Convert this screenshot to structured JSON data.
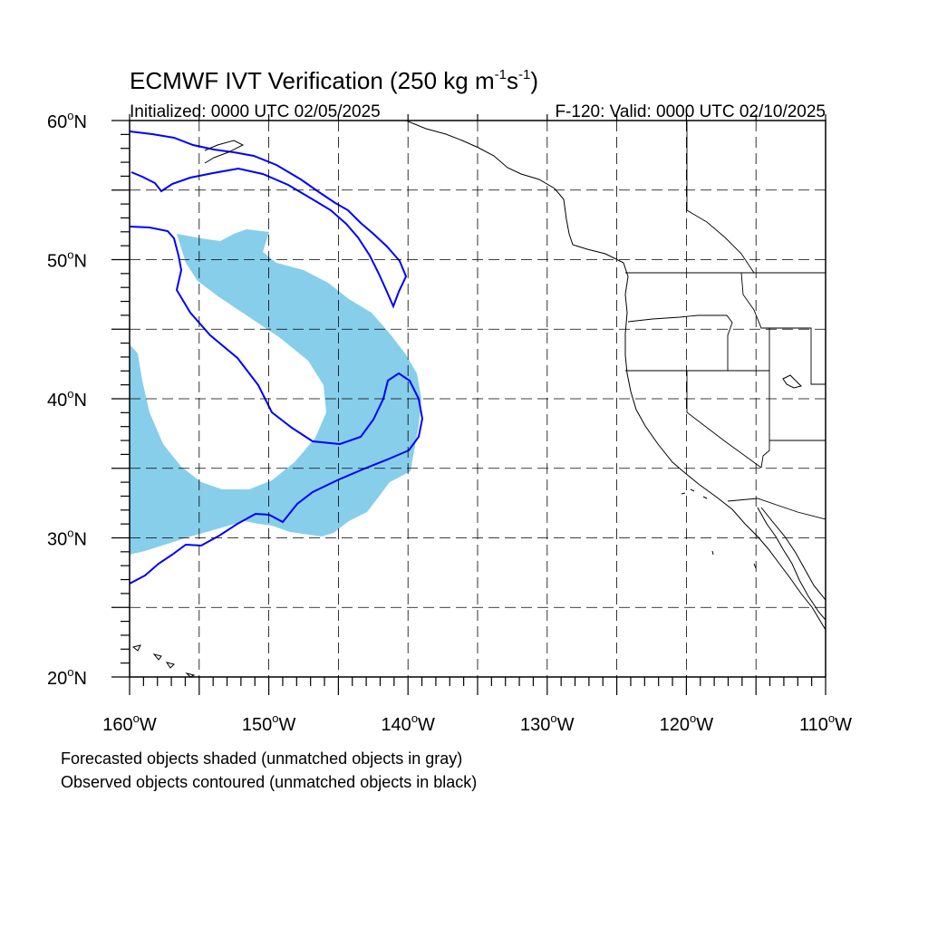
{
  "title": {
    "main": "ECMWF IVT Verification (250 kg m",
    "exp1": "-1",
    "mid": "s",
    "exp2": "-1",
    "close": ")"
  },
  "subtitle": {
    "initialized": "Initialized: 0000 UTC 02/05/2025",
    "valid": "F-120: Valid: 0000 UTC 02/10/2025"
  },
  "axes": {
    "lon_labels": [
      "160",
      "150",
      "140",
      "130",
      "120",
      "110"
    ],
    "lon_hemisphere": "W",
    "lat_labels": [
      "20",
      "30",
      "40",
      "50",
      "60"
    ],
    "lat_hemisphere": "N",
    "degree_symbol": "o",
    "lon_range": [
      -160,
      -110
    ],
    "lat_range": [
      20,
      60
    ],
    "grid": "dashed every 5 degrees"
  },
  "notes": [
    "Forecasted objects shaded (unmatched objects in gray)",
    "Observed objects contoured (unmatched objects in black)"
  ],
  "colors": {
    "forecast_fill": "#87ceeb",
    "observed_contour": "#0000ff",
    "coastline": "#000000",
    "grid": "#000000"
  }
}
